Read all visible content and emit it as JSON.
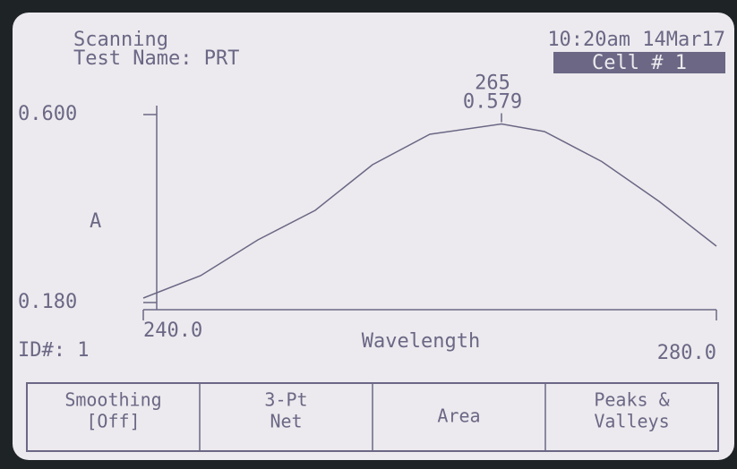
{
  "header": {
    "status": "Scanning",
    "test_name": "Test Name: PRT",
    "datetime": "10:20am 14Mar17",
    "cell": "Cell # 1"
  },
  "id_label": "ID#: 1",
  "chart_data": {
    "type": "line",
    "color": "#6b6785",
    "x": [
      240,
      244,
      248,
      252,
      256,
      260,
      265,
      268,
      272,
      276,
      280
    ],
    "values": [
      0.19,
      0.24,
      0.32,
      0.386,
      0.488,
      0.556,
      0.579,
      0.562,
      0.495,
      0.406,
      0.306
    ],
    "xlim": [
      240,
      280
    ],
    "ylim": [
      0.18,
      0.6
    ],
    "xticks": [
      {
        "value": 240,
        "label": "240.0"
      },
      {
        "value": 280,
        "label": "280.0"
      }
    ],
    "yticks": [
      {
        "value": 0.18,
        "label": "0.180"
      },
      {
        "value": 0.6,
        "label": "0.600"
      }
    ],
    "x_label": "Wavelength",
    "y_label": "A",
    "peak": {
      "x": 265,
      "y": 0.579
    }
  },
  "softkeys": [
    [
      "Smoothing",
      "[Off]"
    ],
    [
      "3-Pt",
      "Net"
    ],
    [
      "Area"
    ],
    [
      "Peaks &",
      "Valleys"
    ]
  ]
}
